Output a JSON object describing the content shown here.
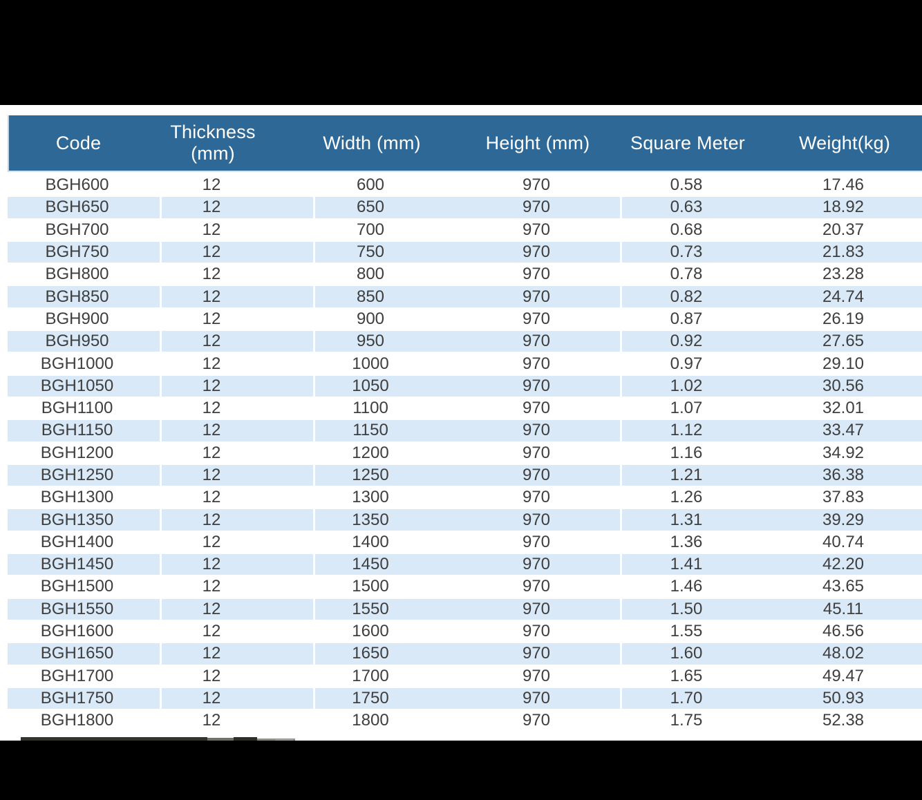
{
  "table": {
    "columns": [
      "Code",
      "Thickness (mm)",
      "Width (mm)",
      "Height (mm)",
      "Square Meter",
      "Weight(kg)"
    ],
    "rows": [
      [
        "BGH600",
        "12",
        "600",
        "970",
        "0.58",
        "17.46"
      ],
      [
        "BGH650",
        "12",
        "650",
        "970",
        "0.63",
        "18.92"
      ],
      [
        "BGH700",
        "12",
        "700",
        "970",
        "0.68",
        "20.37"
      ],
      [
        "BGH750",
        "12",
        "750",
        "970",
        "0.73",
        "21.83"
      ],
      [
        "BGH800",
        "12",
        "800",
        "970",
        "0.78",
        "23.28"
      ],
      [
        "BGH850",
        "12",
        "850",
        "970",
        "0.82",
        "24.74"
      ],
      [
        "BGH900",
        "12",
        "900",
        "970",
        "0.87",
        "26.19"
      ],
      [
        "BGH950",
        "12",
        "950",
        "970",
        "0.92",
        "27.65"
      ],
      [
        "BGH1000",
        "12",
        "1000",
        "970",
        "0.97",
        "29.10"
      ],
      [
        "BGH1050",
        "12",
        "1050",
        "970",
        "1.02",
        "30.56"
      ],
      [
        "BGH1100",
        "12",
        "1100",
        "970",
        "1.07",
        "32.01"
      ],
      [
        "BGH1150",
        "12",
        "1150",
        "970",
        "1.12",
        "33.47"
      ],
      [
        "BGH1200",
        "12",
        "1200",
        "970",
        "1.16",
        "34.92"
      ],
      [
        "BGH1250",
        "12",
        "1250",
        "970",
        "1.21",
        "36.38"
      ],
      [
        "BGH1300",
        "12",
        "1300",
        "970",
        "1.26",
        "37.83"
      ],
      [
        "BGH1350",
        "12",
        "1350",
        "970",
        "1.31",
        "39.29"
      ],
      [
        "BGH1400",
        "12",
        "1400",
        "970",
        "1.36",
        "40.74"
      ],
      [
        "BGH1450",
        "12",
        "1450",
        "970",
        "1.41",
        "42.20"
      ],
      [
        "BGH1500",
        "12",
        "1500",
        "970",
        "1.46",
        "43.65"
      ],
      [
        "BGH1550",
        "12",
        "1550",
        "970",
        "1.50",
        "45.11"
      ],
      [
        "BGH1600",
        "12",
        "1600",
        "970",
        "1.55",
        "46.56"
      ],
      [
        "BGH1650",
        "12",
        "1650",
        "970",
        "1.60",
        "48.02"
      ],
      [
        "BGH1700",
        "12",
        "1700",
        "970",
        "1.65",
        "49.47"
      ],
      [
        "BGH1750",
        "12",
        "1750",
        "970",
        "1.70",
        "50.93"
      ],
      [
        "BGH1800",
        "12",
        "1800",
        "970",
        "1.75",
        "52.38"
      ]
    ]
  },
  "colors": {
    "header_bg": "#2E6897",
    "header_text": "#FFFFFF",
    "row_stripe": "#D9E9F7",
    "body_text": "#3E3E3E",
    "band": "#000000"
  }
}
